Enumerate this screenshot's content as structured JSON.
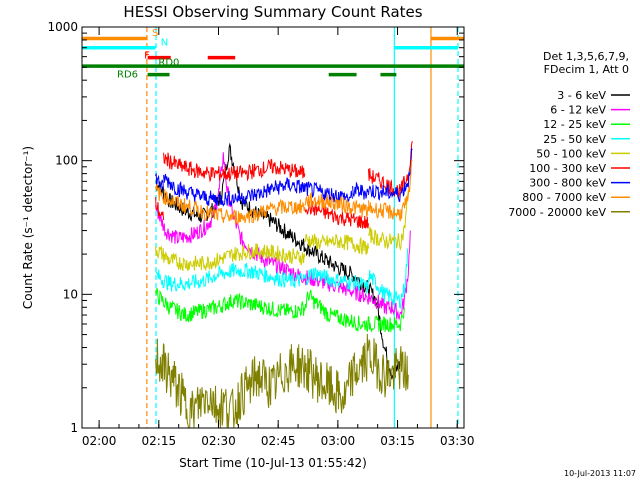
{
  "chart_data": {
    "type": "line",
    "title": "HESSI Observing Summary Count Rates",
    "xlabel": "Start Time (10-Jul-13 01:55:42)",
    "ylabel": "Count Rate (s⁻¹ detector⁻¹)",
    "x_unit": "minutes",
    "xlim": [
      0,
      96
    ],
    "ylim": [
      1,
      1000
    ],
    "yscale": "log",
    "x_ticks": [
      {
        "v": 4.3,
        "label": "02:00"
      },
      {
        "v": 19.3,
        "label": "02:15"
      },
      {
        "v": 34.3,
        "label": "02:30"
      },
      {
        "v": 49.3,
        "label": "02:45"
      },
      {
        "v": 64.3,
        "label": "03:00"
      },
      {
        "v": 79.3,
        "label": "03:15"
      },
      {
        "v": 94.3,
        "label": "03:30"
      }
    ],
    "y_tick_labels": [
      {
        "v": 1000,
        "label": "1000"
      },
      {
        "v": 100,
        "label": "100"
      },
      {
        "v": 10,
        "label": "10"
      },
      {
        "v": 1,
        "label": "1"
      }
    ],
    "legend_header": [
      "Det 1,3,5,6,7,9,",
      "FDecim 1, Att 0"
    ],
    "legend_position": "right",
    "series": [
      {
        "name": "3 - 6 keV",
        "color": "#000000",
        "segments": [
          [
            [
              18.5,
              70
            ],
            [
              22,
              50
            ],
            [
              26,
              42
            ],
            [
              30,
              38
            ],
            [
              33,
              43
            ],
            [
              35,
              55
            ],
            [
              36,
              80
            ],
            [
              37,
              125
            ],
            [
              38.5,
              85
            ],
            [
              40,
              50
            ],
            [
              44,
              40
            ],
            [
              48,
              35
            ],
            [
              52,
              28
            ],
            [
              56,
              23
            ],
            [
              60,
              19
            ],
            [
              64,
              16
            ],
            [
              68,
              14
            ],
            [
              72,
              11
            ],
            [
              74,
              9
            ]
          ],
          [
            [
              74,
              9
            ],
            [
              76,
              4
            ],
            [
              78,
              2.5
            ],
            [
              80,
              3
            ]
          ]
        ]
      },
      {
        "name": "6 - 12 keV",
        "color": "#ff00ff",
        "segments": [
          [
            [
              18.5,
              45
            ],
            [
              21,
              30
            ],
            [
              24,
              26
            ],
            [
              28,
              28
            ],
            [
              31,
              32
            ],
            [
              33,
              38
            ],
            [
              34.5,
              60
            ],
            [
              35.5,
              110
            ],
            [
              36.5,
              60
            ],
            [
              38,
              38
            ],
            [
              40,
              26
            ],
            [
              43,
              21
            ],
            [
              46,
              18
            ],
            [
              50,
              16
            ],
            [
              54,
              14
            ],
            [
              58,
              13
            ],
            [
              62,
              12
            ],
            [
              66,
              11
            ],
            [
              70,
              10
            ],
            [
              74,
              9
            ],
            [
              76,
              8
            ],
            [
              78,
              8
            ],
            [
              80,
              7
            ],
            [
              81,
              9
            ],
            [
              82,
              15
            ],
            [
              82.5,
              30
            ]
          ]
        ]
      },
      {
        "name": "12 - 25 keV",
        "color": "#00ff00",
        "segments": [
          [
            [
              18.5,
              10
            ],
            [
              22,
              8
            ],
            [
              26,
              7
            ],
            [
              30,
              7.5
            ],
            [
              34,
              8
            ],
            [
              38,
              9
            ],
            [
              42,
              8.5
            ],
            [
              46,
              8
            ],
            [
              50,
              7.5
            ],
            [
              54,
              7.5
            ],
            [
              56,
              8
            ],
            [
              57,
              10
            ],
            [
              58,
              9
            ],
            [
              60,
              8
            ],
            [
              62,
              7
            ],
            [
              66,
              6.5
            ],
            [
              70,
              6
            ],
            [
              74,
              6
            ],
            [
              76,
              6
            ],
            [
              80,
              6
            ],
            [
              81,
              8
            ]
          ]
        ]
      },
      {
        "name": "25 - 50 keV",
        "color": "#00ffff",
        "segments": [
          [
            [
              18.5,
              14
            ],
            [
              22,
              12
            ],
            [
              26,
              12
            ],
            [
              30,
              12.5
            ],
            [
              34,
              14
            ],
            [
              38,
              15
            ],
            [
              42,
              15
            ],
            [
              46,
              14
            ],
            [
              50,
              13
            ],
            [
              53,
              12.5
            ],
            [
              56,
              13
            ],
            [
              58,
              14.5
            ],
            [
              60,
              14
            ],
            [
              62,
              13
            ],
            [
              66,
              12.5
            ],
            [
              70,
              12
            ],
            [
              72,
              11
            ]
          ],
          [
            [
              72,
              14
            ],
            [
              74,
              12
            ],
            [
              76,
              10
            ],
            [
              80,
              9
            ],
            [
              81,
              11
            ],
            [
              82,
              22
            ]
          ]
        ]
      },
      {
        "name": "50 - 100 keV",
        "color": "#cccc00",
        "segments": [
          [
            [
              18.5,
              22
            ],
            [
              22,
              18
            ],
            [
              26,
              17
            ],
            [
              30,
              17
            ],
            [
              34,
              18
            ],
            [
              38,
              20
            ],
            [
              42,
              21
            ],
            [
              46,
              21
            ],
            [
              50,
              20
            ],
            [
              54,
              19
            ],
            [
              56,
              19
            ]
          ],
          [
            [
              56,
              26
            ],
            [
              60,
              24
            ],
            [
              64,
              25
            ],
            [
              68,
              24
            ],
            [
              72,
              22
            ]
          ],
          [
            [
              72,
              28
            ],
            [
              76,
              25
            ],
            [
              80,
              25
            ],
            [
              81,
              30
            ],
            [
              82,
              60
            ]
          ]
        ]
      },
      {
        "name": "100 - 300 keV",
        "color": "#ff0000",
        "segments": [
          [
            [
              18.5,
              48
            ],
            [
              20,
              38
            ],
            [
              20.5,
              36
            ]
          ],
          [
            [
              20.5,
              105
            ],
            [
              24,
              92
            ],
            [
              28,
              85
            ],
            [
              32,
              80
            ],
            [
              36,
              80
            ],
            [
              40,
              80
            ],
            [
              44,
              85
            ],
            [
              48,
              90
            ],
            [
              52,
              85
            ],
            [
              56,
              80
            ]
          ],
          [
            [
              56,
              46
            ],
            [
              60,
              42
            ],
            [
              64,
              38
            ],
            [
              68,
              36
            ],
            [
              70,
              35
            ],
            [
              72,
              34
            ]
          ],
          [
            [
              72,
              78
            ],
            [
              76,
              68
            ],
            [
              80,
              58
            ],
            [
              82,
              80
            ],
            [
              83,
              140
            ]
          ]
        ]
      },
      {
        "name": "300 - 800 keV",
        "color": "#0000ff",
        "segments": [
          [
            [
              18.5,
              75
            ],
            [
              20,
              65
            ],
            [
              20.5,
              60
            ]
          ],
          [
            [
              20.5,
              75
            ],
            [
              24,
              62
            ],
            [
              28,
              56
            ],
            [
              32,
              52
            ],
            [
              36,
              52
            ],
            [
              40,
              53
            ],
            [
              44,
              56
            ],
            [
              48,
              62
            ],
            [
              52,
              66
            ],
            [
              56,
              62
            ],
            [
              60,
              58
            ],
            [
              64,
              55
            ],
            [
              68,
              52
            ]
          ],
          [
            [
              68,
              60
            ],
            [
              72,
              58
            ]
          ],
          [
            [
              72,
              60
            ],
            [
              76,
              58
            ],
            [
              80,
              56
            ],
            [
              82,
              70
            ],
            [
              83,
              120
            ]
          ]
        ]
      },
      {
        "name": "800 - 7000 keV",
        "color": "#ff8c00",
        "segments": [
          [
            [
              18.5,
              60
            ],
            [
              20,
              55
            ],
            [
              24,
              48
            ],
            [
              28,
              44
            ],
            [
              32,
              40
            ],
            [
              36,
              38
            ],
            [
              40,
              38
            ],
            [
              44,
              40
            ],
            [
              48,
              44
            ],
            [
              52,
              45
            ],
            [
              56,
              45
            ]
          ],
          [
            [
              56,
              50
            ],
            [
              60,
              50
            ],
            [
              64,
              48
            ],
            [
              68,
              45
            ],
            [
              72,
              42
            ]
          ],
          [
            [
              72,
              44
            ],
            [
              76,
              42
            ],
            [
              80,
              40
            ],
            [
              82,
              50
            ],
            [
              83,
              100
            ]
          ]
        ]
      },
      {
        "name": "7000 - 20000 keV",
        "color": "#808000",
        "segments": [
          [
            [
              18.5,
              3.5
            ],
            [
              20,
              3
            ],
            [
              22,
              2.5
            ],
            [
              24,
              2
            ],
            [
              26,
              1.5
            ],
            [
              28,
              1.3
            ],
            [
              30,
              1.6
            ],
            [
              32,
              1.8
            ],
            [
              34,
              1.4
            ],
            [
              36,
              1.5
            ],
            [
              38,
              1.3
            ],
            [
              40,
              1.8
            ],
            [
              42,
              2
            ],
            [
              44,
              2.5
            ],
            [
              46,
              2.2
            ],
            [
              48,
              2
            ],
            [
              50,
              2.5
            ],
            [
              52,
              2.8
            ],
            [
              54,
              3
            ],
            [
              56,
              2.8
            ],
            [
              58,
              2.5
            ],
            [
              60,
              2.2
            ],
            [
              62,
              2
            ],
            [
              64,
              1.8
            ],
            [
              66,
              1.6
            ],
            [
              68,
              2.5
            ],
            [
              70,
              2.8
            ],
            [
              72,
              3.5
            ],
            [
              74,
              3
            ],
            [
              76,
              2.5
            ],
            [
              78,
              2.5
            ],
            [
              80,
              2.8
            ],
            [
              82,
              2.5
            ]
          ]
        ]
      }
    ],
    "annotations": [
      {
        "label": "S",
        "color": "#ff8c00",
        "text_x": 17.6,
        "text_y": 860
      },
      {
        "label": "N",
        "color": "#00ffff",
        "text_x": 19.8,
        "text_y": 730
      },
      {
        "label": "F",
        "color": "#ff0000",
        "text_x": 15.6,
        "text_y": 580
      },
      {
        "label": "RD0",
        "color": "#008000",
        "text_x": 19.2,
        "text_y": 515
      },
      {
        "label": "RD6",
        "color": "#008000",
        "text_x": 8.8,
        "text_y": 420
      }
    ],
    "flag_bars": [
      {
        "color": "#ff8c00",
        "y": 820,
        "ranges": [
          [
            0,
            16.5
          ],
          [
            87.8,
            96
          ]
        ]
      },
      {
        "color": "#00ffff",
        "y": 700,
        "ranges": [
          [
            0,
            18.5
          ],
          [
            78.6,
            94.5
          ]
        ]
      },
      {
        "color": "#ff0000",
        "y": 590,
        "ranges": [
          [
            16.5,
            22.3
          ],
          [
            31.6,
            38.5
          ]
        ]
      },
      {
        "color": "#008000",
        "y": 510,
        "ranges": [
          [
            0,
            96
          ]
        ]
      },
      {
        "color": "#008000",
        "y": 440,
        "ranges": [
          [
            16.5,
            22
          ],
          [
            62,
            69
          ],
          [
            75,
            79
          ]
        ]
      }
    ],
    "vlines": [
      {
        "x": 16.3,
        "color": "#ff8c00",
        "dash": true
      },
      {
        "x": 18.6,
        "color": "#00ffff",
        "dash": true
      },
      {
        "x": 78.5,
        "color": "#00ffff",
        "dash": false
      },
      {
        "x": 87.7,
        "color": "#ff8c00",
        "dash": false
      },
      {
        "x": 94.5,
        "color": "#00ffff",
        "dash": true
      }
    ]
  },
  "footer_timestamp": "10-Jul-2013 11:07"
}
